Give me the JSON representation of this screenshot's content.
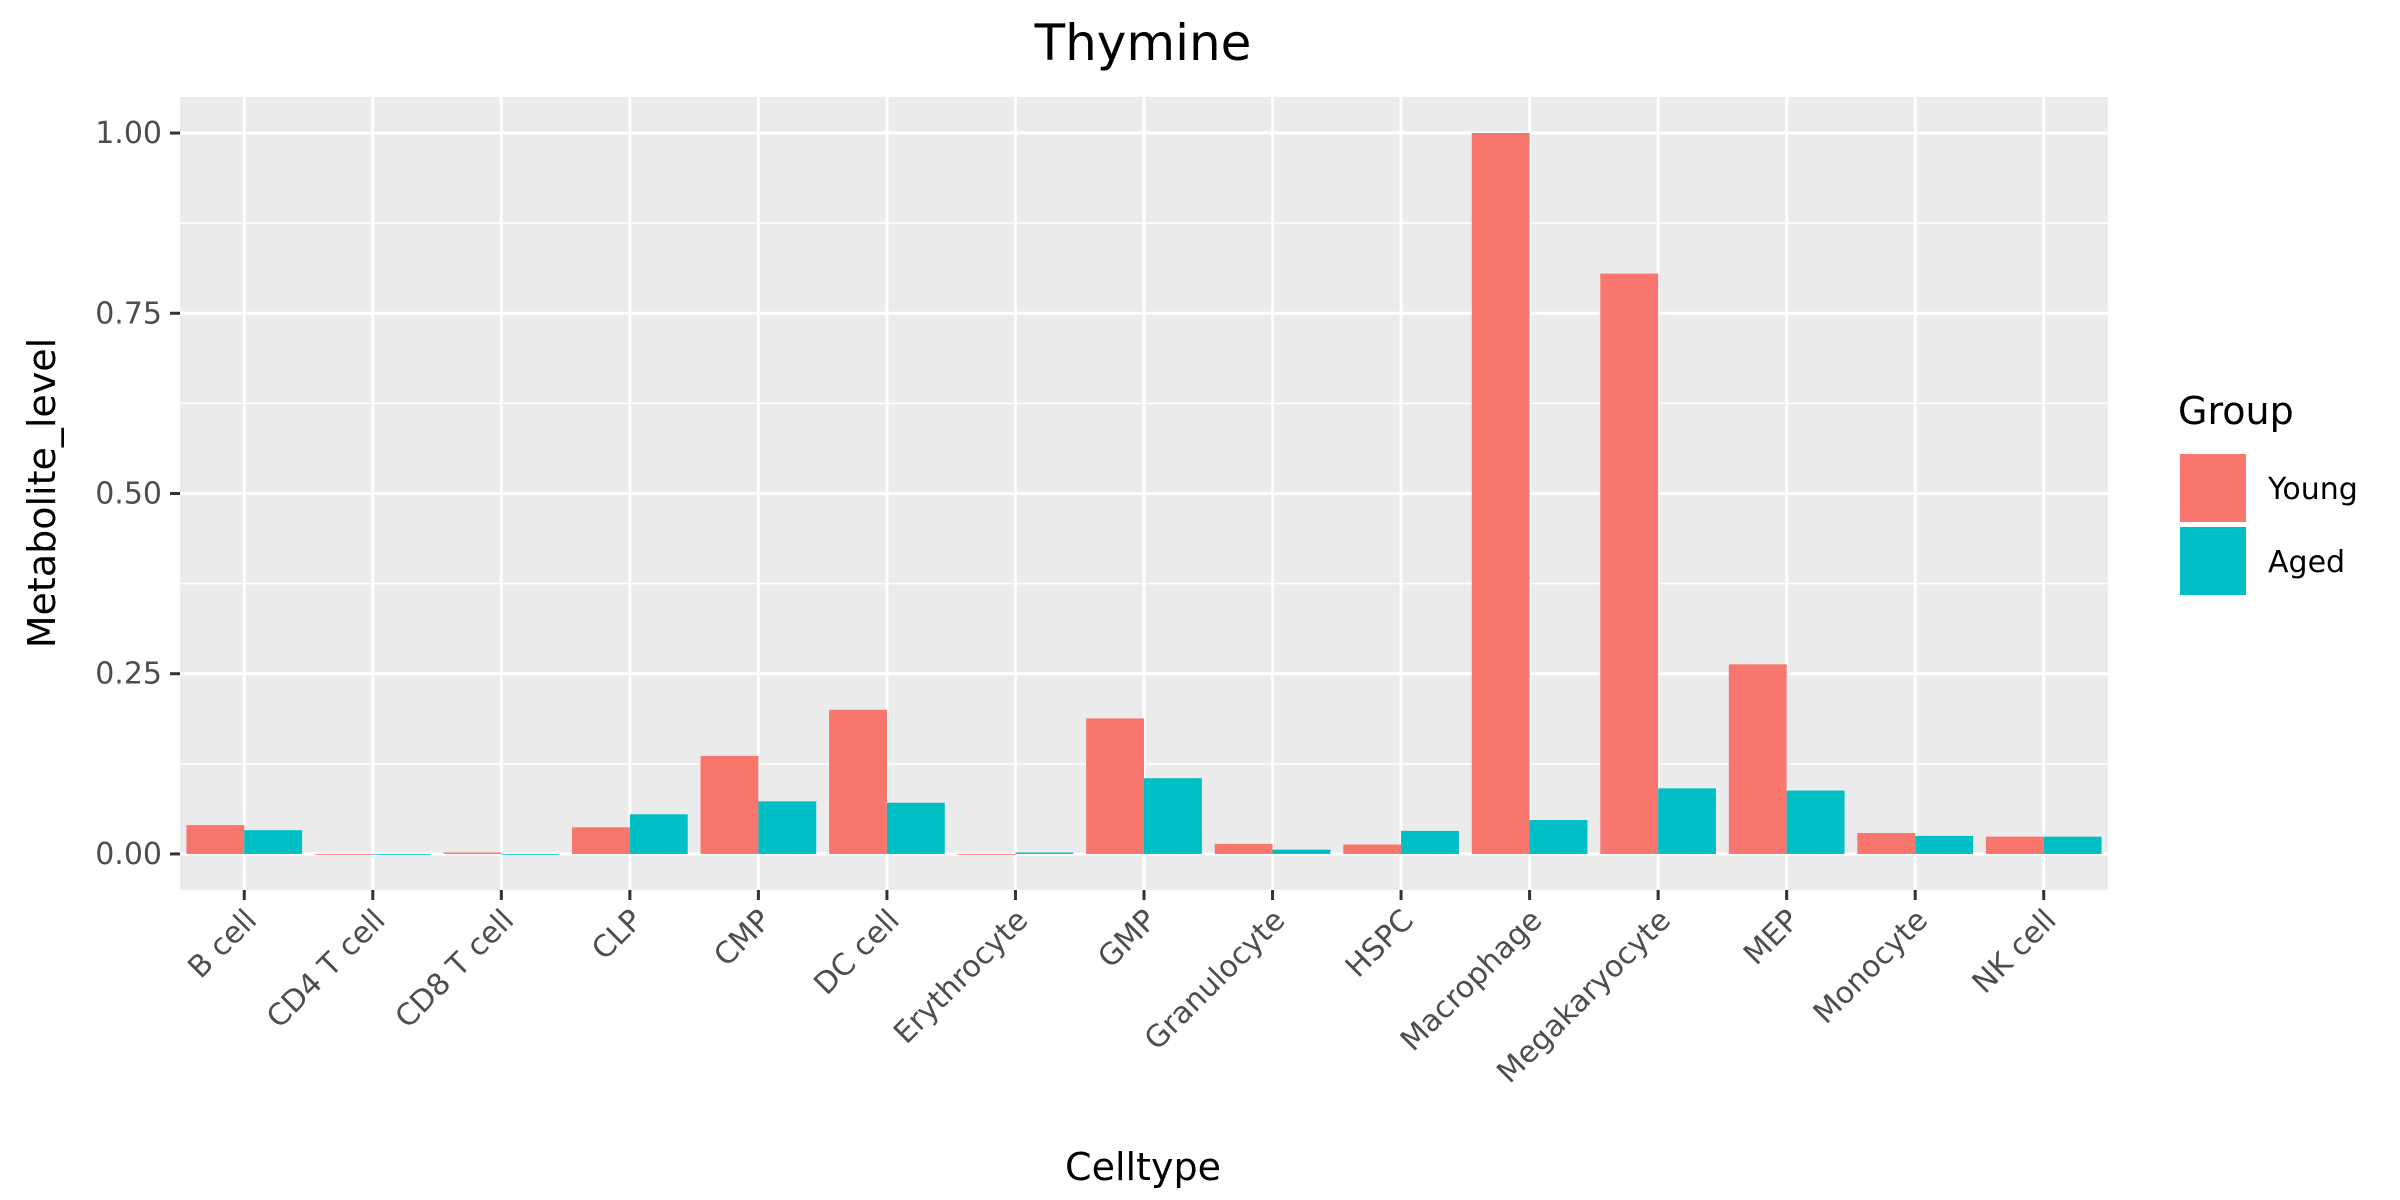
{
  "chart_data": {
    "type": "bar",
    "title": "Thymine",
    "xlabel": "Celltype",
    "ylabel": "Metabolite_level",
    "ylim": [
      -0.05,
      1.05
    ],
    "yticks": [
      0.0,
      0.25,
      0.5,
      0.75,
      1.0
    ],
    "ytick_labels": [
      "0.00",
      "0.25",
      "0.50",
      "0.75",
      "1.00"
    ],
    "grid": true,
    "legend": {
      "title": "Group",
      "position": "right"
    },
    "categories": [
      "B cell",
      "CD4 T cell",
      "CD8 T cell",
      "CLP",
      "CMP",
      "DC cell",
      "Erythrocyte",
      "GMP",
      "Granulocyte",
      "HSPC",
      "Macrophage",
      "Megakaryocyte",
      "MEP",
      "Monocyte",
      "NK cell"
    ],
    "series": [
      {
        "name": "Young",
        "color": "#F8766D",
        "values": [
          0.04,
          0.0,
          0.002,
          0.037,
          0.136,
          0.2,
          0.0,
          0.188,
          0.014,
          0.013,
          1.0,
          0.805,
          0.263,
          0.029,
          0.024
        ]
      },
      {
        "name": "Aged",
        "color": "#00BFC4",
        "values": [
          0.033,
          0.0,
          0.0,
          0.055,
          0.073,
          0.071,
          0.002,
          0.105,
          0.006,
          0.032,
          0.047,
          0.091,
          0.088,
          0.025,
          0.024
        ]
      }
    ]
  }
}
